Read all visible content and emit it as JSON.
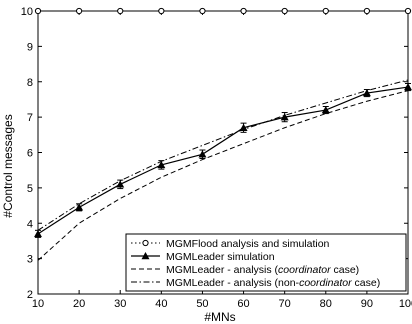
{
  "chart_data": {
    "type": "line",
    "xlabel": "#MNs",
    "ylabel": "#Control messages",
    "xlim": [
      10,
      100
    ],
    "ylim": [
      2,
      10
    ],
    "xticks": [
      10,
      20,
      30,
      40,
      50,
      60,
      70,
      80,
      90,
      100
    ],
    "yticks": [
      2,
      3,
      4,
      5,
      6,
      7,
      8,
      9,
      10
    ],
    "grid": false,
    "legend_position": "bottom-right",
    "x": [
      10,
      20,
      30,
      40,
      50,
      60,
      70,
      80,
      90,
      100
    ],
    "series": [
      {
        "name": "MGMFlood analysis and simulation",
        "style": "dotted-circle",
        "values": [
          10,
          10,
          10,
          10,
          10,
          10,
          10,
          10,
          10,
          10
        ]
      },
      {
        "name": "MGMLeader simulation",
        "style": "solid-triangle-errorbar",
        "values": [
          3.7,
          4.45,
          5.1,
          5.65,
          5.95,
          6.7,
          7.0,
          7.2,
          7.68,
          7.85
        ],
        "errors": [
          0.1,
          0.1,
          0.12,
          0.12,
          0.12,
          0.13,
          0.13,
          0.1,
          0.1,
          0.1
        ]
      },
      {
        "name_parts": [
          "MGMLeader - analysis (",
          "coordinator",
          " case)"
        ],
        "style": "dashed",
        "values": [
          2.95,
          4.0,
          4.7,
          5.3,
          5.8,
          6.25,
          6.7,
          7.1,
          7.45,
          7.75
        ]
      },
      {
        "name_parts": [
          "MGMLeader - analysis (non-",
          "coordinator",
          " case)"
        ],
        "style": "dashdot",
        "values": [
          3.8,
          4.55,
          5.2,
          5.75,
          6.2,
          6.65,
          7.05,
          7.4,
          7.75,
          8.05
        ]
      }
    ]
  }
}
